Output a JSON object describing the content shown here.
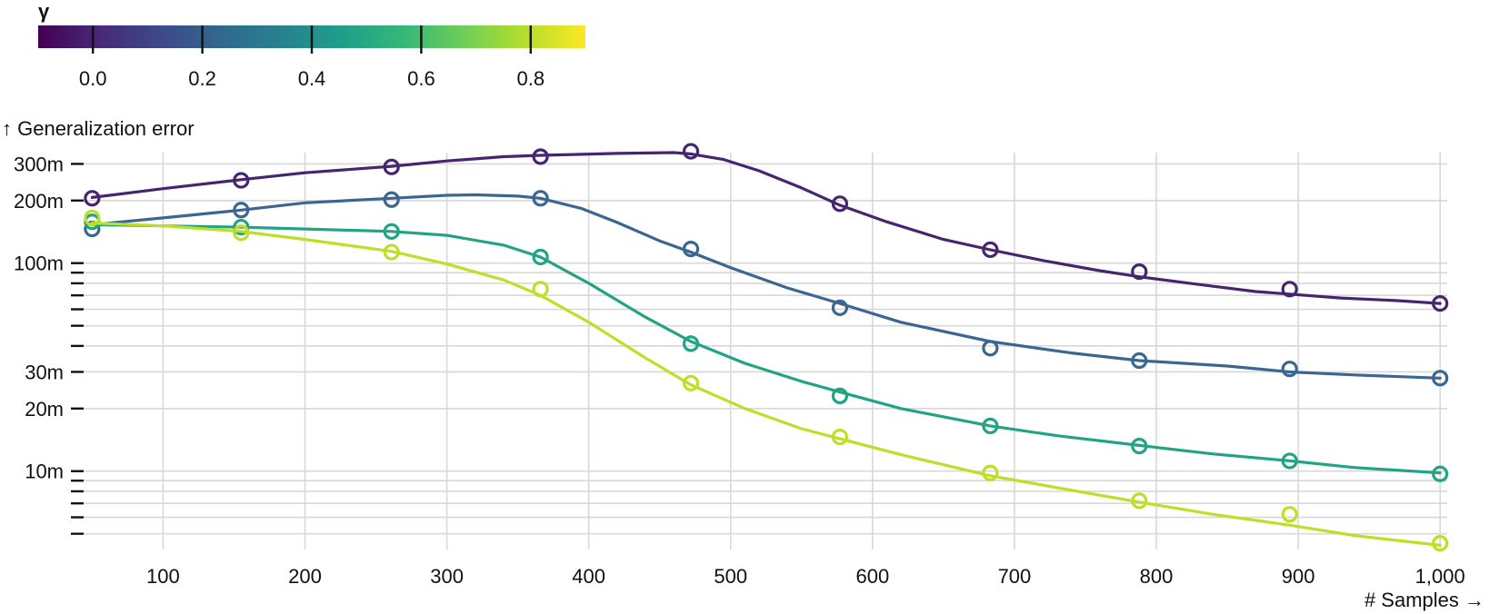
{
  "chart_data": {
    "type": "line",
    "xlabel": "# Samples →",
    "ylabel": "↑ Generalization error",
    "xlim": [
      44,
      1005
    ],
    "ylim": [
      0.0042,
      0.34
    ],
    "yscale": "log",
    "grid": true,
    "x_ticks": [
      100,
      200,
      300,
      400,
      500,
      600,
      700,
      800,
      900,
      1000
    ],
    "x_tick_labels": [
      "100",
      "200",
      "300",
      "400",
      "500",
      "600",
      "700",
      "800",
      "900",
      "1,000"
    ],
    "y_major_ticks": [
      0.3,
      0.2,
      0.1,
      0.03,
      0.02,
      0.01
    ],
    "y_tick_labels": [
      "300m",
      "200m",
      "100m",
      "30m",
      "20m",
      "10m"
    ],
    "y_minor_ticks": [
      0.09,
      0.08,
      0.07,
      0.06,
      0.05,
      0.04,
      0.009,
      0.008,
      0.007,
      0.006,
      0.005
    ],
    "legend": {
      "title": "γ",
      "type": "color-ramp",
      "domain": [
        -0.1,
        0.9
      ],
      "ticks": [
        0.0,
        0.2,
        0.4,
        0.6,
        0.8
      ],
      "tick_labels": [
        "0.0",
        "0.2",
        "0.4",
        "0.6",
        "0.8"
      ],
      "colors": [
        "#440154",
        "#482878",
        "#3e4989",
        "#31688e",
        "#26828e",
        "#1f9e89",
        "#35b779",
        "#6ece58",
        "#b5de2b",
        "#fde725"
      ],
      "placement": "top-left"
    },
    "series": [
      {
        "gamma": 0.0,
        "color": "#46256f",
        "points_x": [
          50,
          155,
          261,
          366,
          472,
          577,
          683,
          788,
          894,
          1000
        ],
        "points_y": [
          0.205,
          0.25,
          0.29,
          0.325,
          0.345,
          0.193,
          0.116,
          0.091,
          0.075,
          0.064
        ],
        "line_x": [
          50,
          100,
          155,
          200,
          261,
          300,
          340,
          366,
          420,
          460,
          472,
          495,
          520,
          550,
          577,
          610,
          650,
          683,
          720,
          760,
          788,
          830,
          870,
          894,
          930,
          970,
          1000
        ],
        "line_y": [
          0.207,
          0.228,
          0.252,
          0.272,
          0.292,
          0.31,
          0.325,
          0.33,
          0.337,
          0.34,
          0.335,
          0.315,
          0.278,
          0.23,
          0.19,
          0.158,
          0.13,
          0.116,
          0.103,
          0.092,
          0.086,
          0.079,
          0.073,
          0.071,
          0.068,
          0.066,
          0.064
        ]
      },
      {
        "gamma": 0.25,
        "color": "#3b6692",
        "points_x": [
          50,
          155,
          261,
          366,
          472,
          577,
          683,
          788,
          894,
          1000
        ],
        "points_y": [
          0.146,
          0.18,
          0.202,
          0.205,
          0.117,
          0.061,
          0.039,
          0.034,
          0.031,
          0.028
        ],
        "line_x": [
          50,
          100,
          155,
          200,
          261,
          300,
          320,
          350,
          366,
          395,
          420,
          450,
          472,
          500,
          540,
          577,
          620,
          683,
          740,
          788,
          850,
          894,
          940,
          1000
        ],
        "line_y": [
          0.153,
          0.165,
          0.18,
          0.195,
          0.205,
          0.212,
          0.213,
          0.21,
          0.205,
          0.183,
          0.157,
          0.128,
          0.113,
          0.095,
          0.076,
          0.064,
          0.052,
          0.042,
          0.037,
          0.034,
          0.032,
          0.03,
          0.029,
          0.028
        ]
      },
      {
        "gamma": 0.55,
        "color": "#22a384",
        "points_x": [
          50,
          155,
          261,
          366,
          472,
          577,
          683,
          788,
          894,
          1000
        ],
        "points_y": [
          0.158,
          0.149,
          0.142,
          0.107,
          0.041,
          0.023,
          0.0165,
          0.0132,
          0.0112,
          0.0097
        ],
        "line_x": [
          50,
          100,
          155,
          200,
          261,
          300,
          340,
          366,
          400,
          440,
          472,
          510,
          550,
          577,
          620,
          683,
          730,
          788,
          840,
          894,
          940,
          1000
        ],
        "line_y": [
          0.153,
          0.151,
          0.149,
          0.146,
          0.142,
          0.136,
          0.122,
          0.107,
          0.08,
          0.055,
          0.042,
          0.033,
          0.027,
          0.024,
          0.02,
          0.0165,
          0.0148,
          0.0133,
          0.0121,
          0.0112,
          0.0104,
          0.0098
        ]
      },
      {
        "gamma": 0.85,
        "color": "#bddf26",
        "points_x": [
          50,
          155,
          261,
          366,
          472,
          577,
          683,
          788,
          894,
          1000
        ],
        "points_y": [
          0.165,
          0.14,
          0.113,
          0.075,
          0.0265,
          0.0146,
          0.0098,
          0.0072,
          0.0062,
          0.0045
        ],
        "line_x": [
          50,
          100,
          155,
          200,
          261,
          300,
          340,
          366,
          400,
          440,
          472,
          510,
          550,
          577,
          620,
          683,
          740,
          788,
          840,
          894,
          940,
          1000
        ],
        "line_y": [
          0.156,
          0.151,
          0.142,
          0.13,
          0.114,
          0.099,
          0.083,
          0.07,
          0.052,
          0.035,
          0.026,
          0.02,
          0.016,
          0.0143,
          0.012,
          0.0095,
          0.0081,
          0.0071,
          0.0062,
          0.0055,
          0.0049,
          0.0044
        ]
      }
    ]
  }
}
